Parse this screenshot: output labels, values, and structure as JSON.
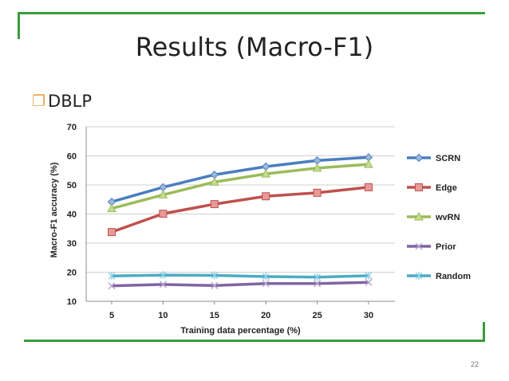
{
  "slide": {
    "title": "Results (Macro-F1)",
    "bullet": "DBLP",
    "page_number": "22"
  },
  "colors": {
    "accent": "#3b9c3b",
    "bullet": "#e7a33e"
  },
  "chart_data": {
    "type": "line",
    "x": [
      5,
      10,
      15,
      20,
      25,
      30
    ],
    "xlabel": "Training data percentage (%)",
    "ylabel": "Macro-F1 accuracy (%)",
    "xlim": [
      5,
      30
    ],
    "ylim": [
      10,
      70
    ],
    "yticks": [
      10,
      20,
      30,
      40,
      50,
      60,
      70
    ],
    "grid": true,
    "legend": "right",
    "series": [
      {
        "name": "SCRN",
        "values": [
          44.2,
          49.2,
          53.5,
          56.3,
          58.4,
          59.5
        ],
        "color": "#4a7ebf",
        "marker": "diamond"
      },
      {
        "name": "Edge",
        "values": [
          33.8,
          40.1,
          43.4,
          46.1,
          47.3,
          49.2
        ],
        "color": "#c0504d",
        "marker": "square"
      },
      {
        "name": "wvRN",
        "values": [
          41.9,
          46.6,
          51.0,
          53.8,
          55.8,
          57.1
        ],
        "color": "#9bbb59",
        "marker": "triangle"
      },
      {
        "name": "Prior",
        "values": [
          15.3,
          15.8,
          15.4,
          16.1,
          16.1,
          16.5
        ],
        "color": "#8064a2",
        "marker": "x"
      },
      {
        "name": "Random",
        "values": [
          18.7,
          19.0,
          18.9,
          18.5,
          18.3,
          18.8
        ],
        "color": "#4bacc6",
        "marker": "star"
      }
    ]
  }
}
